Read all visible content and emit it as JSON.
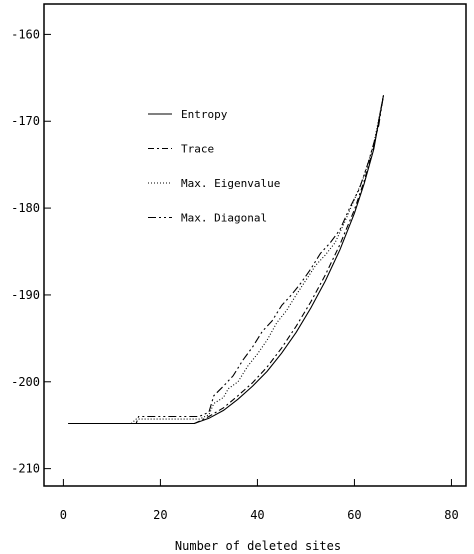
{
  "chart_data": {
    "type": "line",
    "title": "",
    "xlabel": "Number of deleted sites",
    "ylabel": "",
    "xlim": [
      -4,
      83
    ],
    "ylim": [
      -212,
      -156.5
    ],
    "xticks": [
      0,
      20,
      40,
      60,
      80
    ],
    "yticks": [
      -160,
      -170,
      -180,
      -190,
      -200,
      -210
    ],
    "grid": false,
    "legend_position": "upper-left inside",
    "series": [
      {
        "name": "Entropy",
        "dash": "none",
        "points": [
          [
            1,
            -204.8
          ],
          [
            27,
            -204.8
          ],
          [
            30,
            -204.2
          ],
          [
            33,
            -203.3
          ],
          [
            36,
            -202.0
          ],
          [
            39,
            -200.5
          ],
          [
            42,
            -198.8
          ],
          [
            45,
            -196.7
          ],
          [
            48,
            -194.3
          ],
          [
            51,
            -191.5
          ],
          [
            54,
            -188.4
          ],
          [
            57,
            -184.8
          ],
          [
            60,
            -180.6
          ],
          [
            62,
            -177.2
          ],
          [
            64,
            -173.2
          ],
          [
            66,
            -167.0
          ]
        ]
      },
      {
        "name": "Trace",
        "dash": "6 3 2 3",
        "points": [
          [
            1,
            -204.8
          ],
          [
            27,
            -204.8
          ],
          [
            30,
            -204.0
          ],
          [
            33,
            -203.0
          ],
          [
            36,
            -201.6
          ],
          [
            39,
            -200.1
          ],
          [
            42,
            -198.3
          ],
          [
            45,
            -196.1
          ],
          [
            48,
            -193.6
          ],
          [
            51,
            -190.8
          ],
          [
            54,
            -187.7
          ],
          [
            57,
            -184.2
          ],
          [
            60,
            -180.2
          ],
          [
            62,
            -176.9
          ],
          [
            64,
            -173.0
          ],
          [
            66,
            -167.0
          ]
        ]
      },
      {
        "name": "Max. Eigenvalue",
        "dash": "1 2",
        "points": [
          [
            1,
            -204.8
          ],
          [
            14,
            -204.8
          ],
          [
            15,
            -204.3
          ],
          [
            28,
            -204.3
          ],
          [
            30,
            -203.8
          ],
          [
            31,
            -202.5
          ],
          [
            33,
            -201.8
          ],
          [
            34,
            -200.8
          ],
          [
            36,
            -200.0
          ],
          [
            38,
            -198.2
          ],
          [
            40,
            -196.8
          ],
          [
            42,
            -195.2
          ],
          [
            44,
            -193.2
          ],
          [
            46,
            -191.8
          ],
          [
            48,
            -190.0
          ],
          [
            50,
            -188.3
          ],
          [
            52,
            -186.6
          ],
          [
            54,
            -185.4
          ],
          [
            56,
            -184.0
          ],
          [
            58,
            -181.6
          ],
          [
            60,
            -179.0
          ],
          [
            62,
            -176.3
          ],
          [
            64,
            -172.6
          ],
          [
            66,
            -167.0
          ]
        ]
      },
      {
        "name": "Max. Diagonal",
        "dash": "8 3 2 3 2 3",
        "points": [
          [
            1,
            -204.8
          ],
          [
            15,
            -204.8
          ],
          [
            15.5,
            -204.0
          ],
          [
            28,
            -204.0
          ],
          [
            30,
            -203.5
          ],
          [
            31,
            -201.6
          ],
          [
            33,
            -200.5
          ],
          [
            35,
            -199.3
          ],
          [
            37,
            -197.5
          ],
          [
            39,
            -196.0
          ],
          [
            41,
            -194.2
          ],
          [
            43,
            -193.0
          ],
          [
            45,
            -191.2
          ],
          [
            47,
            -190.0
          ],
          [
            49,
            -188.6
          ],
          [
            51,
            -187.0
          ],
          [
            53,
            -185.2
          ],
          [
            55,
            -184.0
          ],
          [
            57,
            -182.5
          ],
          [
            59,
            -180.0
          ],
          [
            61,
            -177.8
          ],
          [
            63,
            -174.5
          ],
          [
            65,
            -170.5
          ],
          [
            66,
            -167.0
          ]
        ]
      }
    ]
  }
}
